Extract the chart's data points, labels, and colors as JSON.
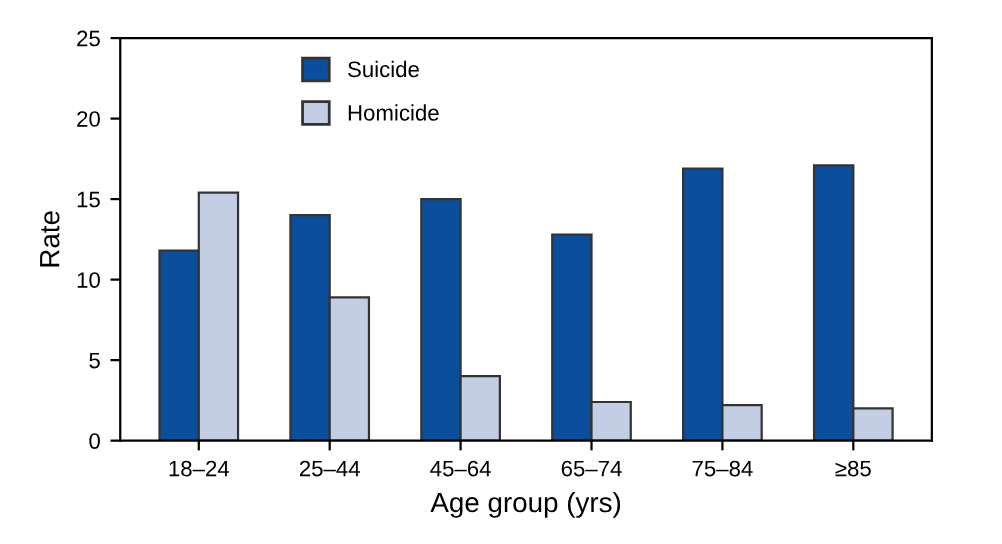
{
  "chart_data": {
    "type": "bar",
    "xlabel": "Age group (yrs)",
    "ylabel": "Rate",
    "categories": [
      "18–24",
      "25–44",
      "45–64",
      "65–74",
      "75–84",
      "≥85"
    ],
    "series": [
      {
        "name": "Suicide",
        "color": "#0b4f9c",
        "values": [
          11.8,
          14.0,
          15.0,
          12.8,
          16.9,
          17.1
        ]
      },
      {
        "name": "Homicide",
        "color": "#c3cde3",
        "values": [
          15.4,
          8.9,
          4.0,
          2.4,
          2.2,
          2.0
        ]
      }
    ],
    "ylim": [
      0,
      25
    ],
    "yticks": [
      0,
      5,
      10,
      15,
      20,
      25
    ],
    "grid": false,
    "legend": "top left"
  }
}
